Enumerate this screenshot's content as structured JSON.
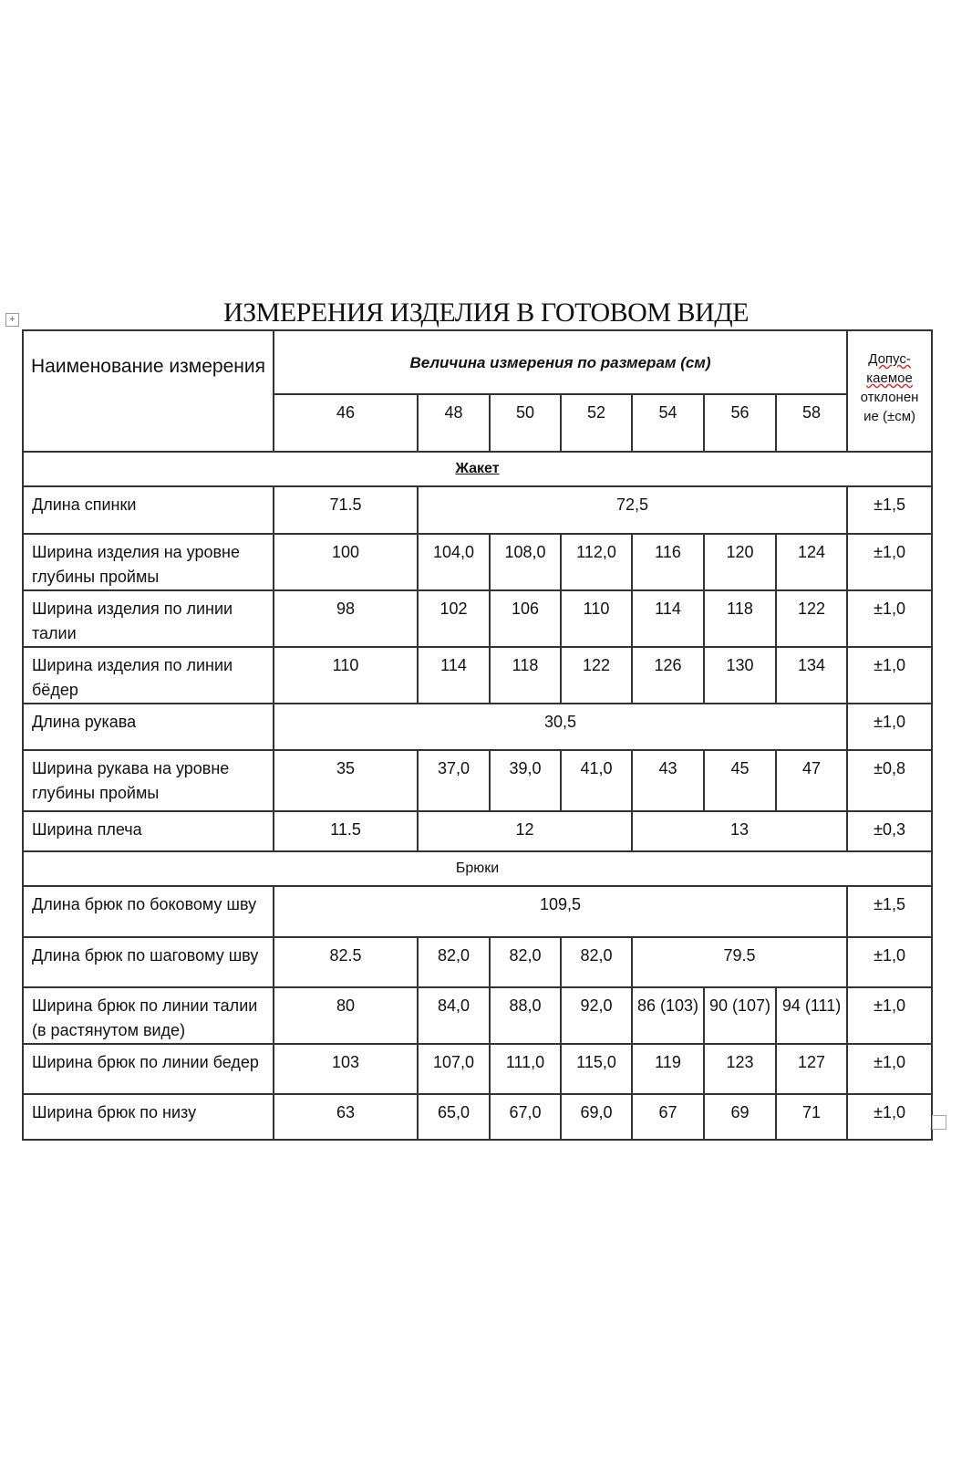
{
  "title": "ИЗМЕРЕНИЯ ИЗДЕЛИЯ В ГОТОВОМ ВИДЕ",
  "header": {
    "name_col": "Наименование измерения",
    "sizes_col": "Величина измерения по размерам (см)",
    "tolerance_line1": "Допус-",
    "tolerance_line2": "каемое",
    "tolerance_line3": "отклонен ие (±см)",
    "sizes": [
      "46",
      "48",
      "50",
      "52",
      "54",
      "56",
      "58"
    ]
  },
  "sections": [
    {
      "title": "Жакет",
      "bold": true,
      "rows": [
        {
          "name": "Длина спинки",
          "h": 52,
          "cells": [
            {
              "v": "71.5"
            },
            {
              "v": "72,5",
              "span": 6
            }
          ],
          "tol": "±1,5"
        },
        {
          "name": "Ширина изделия на уровне глубины проймы",
          "h": 55,
          "cells": [
            {
              "v": "100"
            },
            {
              "v": "104,0"
            },
            {
              "v": "108,0"
            },
            {
              "v": "112,0"
            },
            {
              "v": "116"
            },
            {
              "v": "120"
            },
            {
              "v": "124"
            }
          ],
          "tol": "±1,0"
        },
        {
          "name": "Ширина изделия по линии талии",
          "h": 55,
          "cells": [
            {
              "v": "98"
            },
            {
              "v": "102"
            },
            {
              "v": "106"
            },
            {
              "v": "110"
            },
            {
              "v": "114"
            },
            {
              "v": "118"
            },
            {
              "v": "122"
            }
          ],
          "tol": "±1,0"
        },
        {
          "name": "Ширина изделия по линии бёдер",
          "h": 55,
          "cells": [
            {
              "v": "110"
            },
            {
              "v": "114"
            },
            {
              "v": "118"
            },
            {
              "v": "122"
            },
            {
              "v": "126"
            },
            {
              "v": "130"
            },
            {
              "v": "134"
            }
          ],
          "tol": "±1,0"
        },
        {
          "name": "Длина рукава",
          "h": 51,
          "cells": [
            {
              "v": "30,5",
              "span": 7
            }
          ],
          "tol": "±1,0"
        },
        {
          "name": "Ширина рукава на уровне глубины проймы",
          "h": 67,
          "cells": [
            {
              "v": "35"
            },
            {
              "v": "37,0"
            },
            {
              "v": "39,0"
            },
            {
              "v": "41,0"
            },
            {
              "v": "43"
            },
            {
              "v": "45"
            },
            {
              "v": "47"
            }
          ],
          "tol": "±0,8"
        },
        {
          "name": "Ширина плеча",
          "h": 44,
          "cells": [
            {
              "v": "11.5"
            },
            {
              "v": "12",
              "span": 3
            },
            {
              "v": "13",
              "span": 3
            }
          ],
          "tol": "±0,3"
        }
      ]
    },
    {
      "title": "Брюки",
      "bold": false,
      "rows": [
        {
          "name": "Длина брюк  по боковому шву",
          "h": 56,
          "cells": [
            {
              "v": "109,5",
              "span": 7
            }
          ],
          "tol": "±1,5"
        },
        {
          "name": "Длина брюк по шаговому шву",
          "h": 55,
          "cells": [
            {
              "v": "82.5"
            },
            {
              "v": "82,0"
            },
            {
              "v": "82,0"
            },
            {
              "v": "82,0"
            },
            {
              "v": "79.5",
              "span": 3
            }
          ],
          "tol": "±1,0"
        },
        {
          "name": "Ширина брюк по линии талии (в растянутом виде)",
          "h": 55,
          "cells": [
            {
              "v": "80"
            },
            {
              "v": "84,0"
            },
            {
              "v": "88,0"
            },
            {
              "v": "92,0"
            },
            {
              "v": "86 (103)"
            },
            {
              "v": "90 (107)"
            },
            {
              "v": "94 (111)"
            }
          ],
          "tol": "±1,0"
        },
        {
          "name": "Ширина брюк по линии бедер",
          "h": 55,
          "cells": [
            {
              "v": "103"
            },
            {
              "v": "107,0"
            },
            {
              "v": "111,0"
            },
            {
              "v": "115,0"
            },
            {
              "v": "119"
            },
            {
              "v": "123"
            },
            {
              "v": "127"
            }
          ],
          "tol": "±1,0"
        },
        {
          "name": "Ширина брюк по низу",
          "h": 50,
          "cells": [
            {
              "v": "63"
            },
            {
              "v": "65,0"
            },
            {
              "v": "67,0"
            },
            {
              "v": "69,0"
            },
            {
              "v": "67"
            },
            {
              "v": "69"
            },
            {
              "v": "71"
            }
          ],
          "tol": "±1,0"
        }
      ]
    }
  ]
}
